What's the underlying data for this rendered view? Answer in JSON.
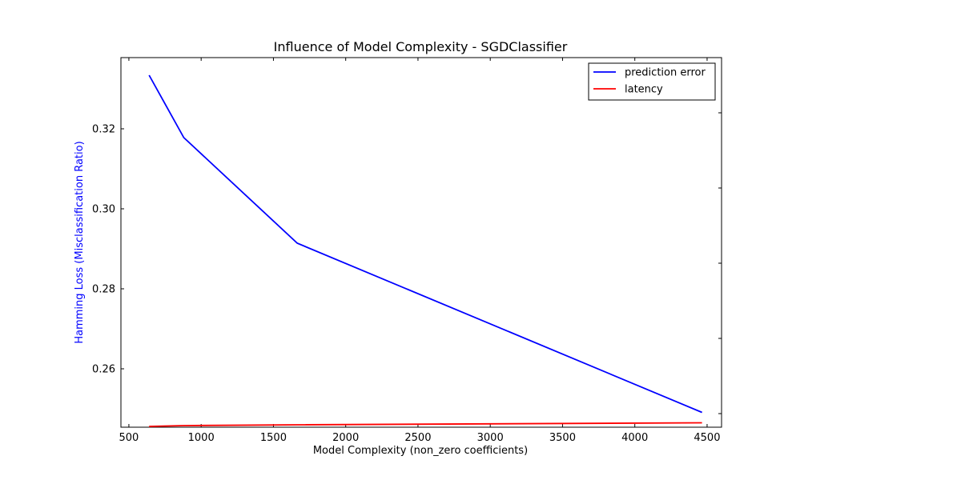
{
  "chart_data": {
    "type": "line",
    "title": "Influence of Model Complexity - SGDClassifier",
    "xlabel": "Model Complexity (non_zero coefficients)",
    "ylabel": "Hamming Loss (Misclassification Ratio)",
    "ylabel_color": "#0000ff",
    "xlim": [
      445,
      4600
    ],
    "ylim": [
      0.2454,
      0.3378
    ],
    "x_ticks": [
      500,
      1000,
      1500,
      2000,
      2500,
      3000,
      3500,
      4000,
      4500
    ],
    "y_ticks": [
      0.26,
      0.28,
      0.3,
      0.32
    ],
    "y_tick_labels": [
      "0.26",
      "0.28",
      "0.30",
      "0.32"
    ],
    "grid": false,
    "legend_position": "top-right",
    "series": [
      {
        "name": "prediction error",
        "color": "#0000ff",
        "x": [
          640,
          880,
          1665,
          4465
        ],
        "y": [
          0.3334,
          0.3178,
          0.2914,
          0.2491
        ]
      },
      {
        "name": "latency",
        "color": "#ff0000",
        "x": [
          640,
          880,
          1665,
          4465
        ],
        "y": [
          0.2456,
          0.2458,
          0.246,
          0.2465
        ]
      }
    ],
    "right_axis_ticks": 5
  }
}
